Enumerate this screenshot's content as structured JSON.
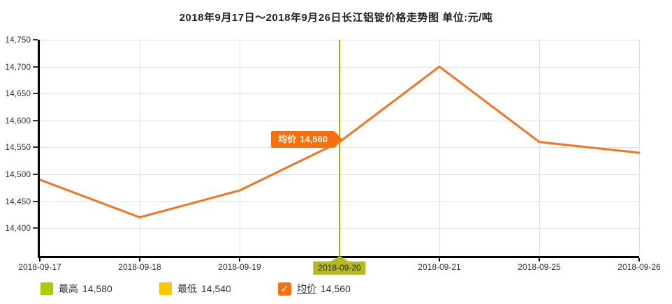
{
  "title": "2018年9月17日～2018年9月26日长江铝锭价格走势图 单位:元/吨",
  "chart_data": {
    "type": "line",
    "title": "2018年9月17日～2018年9月26日长江铝锭价格走势图",
    "unit_label": "单位:元/吨",
    "categories": [
      "2018-09-17",
      "2018-09-18",
      "2018-09-19",
      "2018-09-20",
      "2018-09-21",
      "2018-09-25",
      "2018-09-26"
    ],
    "series": [
      {
        "name": "均价",
        "values": [
          14490,
          14420,
          14470,
          14560,
          14700,
          14560,
          14540
        ]
      }
    ],
    "ylim": [
      14400,
      14750
    ],
    "y_ticks": [
      14750,
      14700,
      14650,
      14600,
      14550,
      14500,
      14450,
      14400
    ],
    "y_tick_labels": [
      "14,750",
      "14,700",
      "14,650",
      "14,600",
      "14,550",
      "14,500",
      "14,450",
      "14,400"
    ],
    "grid": true,
    "legend_position": "bottom",
    "selected_index": 3,
    "selected_category": "2018-09-20",
    "tooltip": {
      "label": "均价",
      "value": "14,560"
    }
  },
  "legend": {
    "items": [
      {
        "label": "最高",
        "value": "14,580",
        "color": "#a8ce00",
        "type": "swatch"
      },
      {
        "label": "最低",
        "value": "14,540",
        "color": "#f7c700",
        "type": "swatch"
      },
      {
        "label": "均价",
        "value": "14,560",
        "color": "#f8700e",
        "type": "checkbox",
        "checked": true,
        "icon": "check-icon"
      }
    ]
  },
  "colors": {
    "line": "#f8731d",
    "tooltip_bg": "#f8700e",
    "selection_line": "#aab301",
    "selected_label_bg": "#b6ba21",
    "grid": "#e0e0e0",
    "axis": "#000000"
  }
}
